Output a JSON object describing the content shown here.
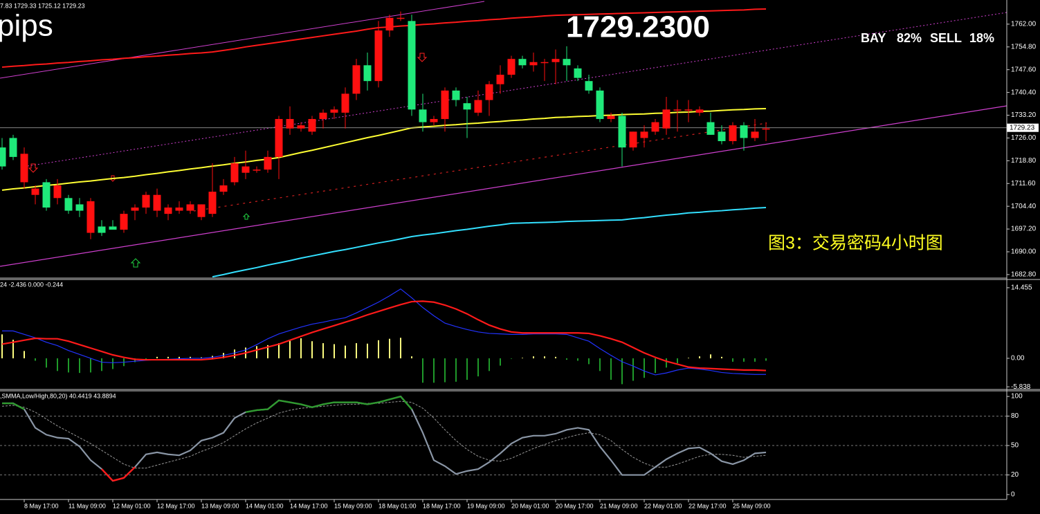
{
  "header": {
    "ohlc_text": "7.83 1729.33 1725.12 1729.23",
    "pips": "pips",
    "price": "1729.2300",
    "bay_label": "BAY",
    "bay_value": "82%",
    "sell_label": "SELL",
    "sell_value": "18%",
    "caption": "图3：交易密码4小时图"
  },
  "chart_data": [
    {
      "type": "candlestick",
      "categories": [
        null,
        null,
        "8 May 17:00",
        null,
        null,
        null,
        "11 May 09:00",
        null,
        null,
        null,
        "12 May 01:00",
        null,
        null,
        null,
        "12 May 17:00",
        null,
        null,
        null,
        "13 May 09:00",
        null,
        null,
        null,
        "14 May 01:00",
        null,
        null,
        null,
        "14 May 17:00",
        null,
        null,
        null,
        "15 May 09:00",
        null,
        null,
        null,
        "18 May 01:00",
        null,
        null,
        null,
        "18 May 17:00",
        null,
        null,
        null,
        "19 May 09:00",
        null,
        null,
        null,
        "20 May 01:00",
        null,
        null,
        null,
        "20 May 17:00",
        null,
        null,
        null,
        "21 May 09:00",
        null,
        null,
        null,
        "22 May 01:00",
        null,
        null,
        null,
        "22 May 17:00",
        null,
        null,
        null,
        "25 May 09:00",
        null,
        null,
        null
      ],
      "open": [
        1723,
        1726,
        1712,
        1708,
        1712,
        1707,
        1707,
        1705,
        1696,
        1698,
        1698,
        1697,
        1703,
        1704,
        1703,
        1702,
        1703,
        1703,
        1701,
        1702,
        1709,
        1712,
        1715,
        1716,
        1716,
        1720,
        1729,
        1729,
        1728,
        1732,
        1734,
        1734,
        1740,
        1749,
        1744,
        1760,
        1764,
        1763,
        1735,
        1731,
        1732,
        1741,
        1737,
        1734,
        1738,
        1743,
        1746,
        1751,
        1749,
        1750,
        1750,
        1751,
        1748,
        1744,
        1741,
        1732,
        1733,
        1723,
        1726,
        1728,
        1729,
        1735,
        1735,
        1734,
        1731,
        1728,
        1725,
        1730,
        1726,
        1729
      ],
      "high": [
        1726,
        1727,
        1723,
        1711,
        1713,
        1713,
        1708,
        1707,
        1707,
        1700,
        1700,
        1703,
        1705,
        1709,
        1710,
        1705,
        1706,
        1706,
        1705,
        1718,
        1713,
        1720,
        1722,
        1717,
        1722,
        1733,
        1736,
        1731,
        1733,
        1735,
        1736,
        1742,
        1751,
        1753,
        1763,
        1765,
        1766,
        1765,
        1740,
        1733,
        1742,
        1742,
        1739,
        1741,
        1744,
        1749,
        1752,
        1752,
        1753,
        1751,
        1754,
        1755,
        1749,
        1746,
        1742,
        1734,
        1734,
        1728,
        1730,
        1732,
        1739,
        1738,
        1738,
        1736,
        1734,
        1730,
        1731,
        1731,
        1732,
        1731
      ],
      "low": [
        1716,
        1719,
        1710,
        1705,
        1703,
        1705,
        1702,
        1701,
        1694,
        1695,
        1697,
        1696,
        1700,
        1702,
        1701,
        1700,
        1702,
        1702,
        1700,
        1701,
        1708,
        1711,
        1713,
        1715,
        1715,
        1713,
        1727,
        1728,
        1727,
        1729,
        1732,
        1729,
        1738,
        1741,
        1742,
        1758,
        1763,
        1733,
        1728,
        1730,
        1728,
        1736,
        1726,
        1733,
        1733,
        1740,
        1745,
        1748,
        1747,
        1744,
        1743,
        1744,
        1744,
        1740,
        1731,
        1731,
        1717,
        1722,
        1723,
        1727,
        1727,
        1728,
        1731,
        1733,
        1727,
        1724,
        1724,
        1722,
        1725,
        1725
      ],
      "close": [
        1717,
        1720,
        1721,
        1710,
        1704,
        1711,
        1703,
        1703,
        1706,
        1696,
        1697,
        1702,
        1704,
        1708,
        1708,
        1704,
        1704,
        1705,
        1705,
        1709,
        1711,
        1718,
        1717,
        1716,
        1720,
        1732,
        1732,
        1730,
        1732,
        1734,
        1735,
        1740,
        1749,
        1744,
        1760,
        1764,
        1764,
        1735,
        1731,
        1732,
        1741,
        1738,
        1735,
        1738,
        1743,
        1746,
        1751,
        1749,
        1750,
        1750,
        1751,
        1749,
        1745,
        1741,
        1732,
        1733,
        1723,
        1728,
        1728,
        1731,
        1735,
        1735,
        1735,
        1735,
        1727,
        1725,
        1730,
        1726,
        1728,
        1729
      ],
      "up_color": "#ff1010",
      "down_color": "#1fe97a",
      "last_price": 1729.23,
      "series": [
        {
          "name": "MA",
          "color": "#ffff33",
          "values": [
            1709.5,
            1709.9,
            1710.2,
            1710.6,
            1711.0,
            1711.3,
            1711.7,
            1712.1,
            1712.4,
            1712.8,
            1713.2,
            1713.5,
            1713.9,
            1714.4,
            1714.8,
            1715.3,
            1715.7,
            1716.2,
            1716.6,
            1717.1,
            1717.5,
            1718.0,
            1718.4,
            1718.9,
            1719.3,
            1719.8,
            1720.6,
            1721.4,
            1722.1,
            1722.9,
            1723.7,
            1724.5,
            1725.3,
            1726.1,
            1726.8,
            1727.6,
            1728.4,
            1729.2,
            1729.5,
            1729.7,
            1730.0,
            1730.2,
            1730.5,
            1730.7,
            1731.0,
            1731.2,
            1731.5,
            1731.7,
            1732.0,
            1732.2,
            1732.5,
            1732.6,
            1732.8,
            1732.9,
            1733.1,
            1733.2,
            1733.4,
            1733.5,
            1733.6,
            1733.8,
            1733.9,
            1734.1,
            1734.2,
            1734.4,
            1734.5,
            1734.7,
            1734.9,
            1735.0,
            1735.2,
            1735.3
          ]
        },
        {
          "name": "Upper",
          "color": "#ff1a1a",
          "values": [
            1748.4,
            1748.7,
            1748.9,
            1749.2,
            1749.4,
            1749.7,
            1749.9,
            1750.2,
            1750.4,
            1750.7,
            1750.9,
            1751.2,
            1751.4,
            1751.7,
            1751.9,
            1752.2,
            1752.4,
            1752.7,
            1752.9,
            1753.2,
            1753.7,
            1754.2,
            1754.8,
            1755.3,
            1755.8,
            1756.3,
            1756.8,
            1757.3,
            1757.8,
            1758.3,
            1758.8,
            1759.3,
            1759.8,
            1760.4,
            1760.9,
            1761.1,
            1761.4,
            1761.6,
            1761.9,
            1762.1,
            1762.4,
            1762.6,
            1762.9,
            1763.1,
            1763.4,
            1763.6,
            1763.9,
            1764.1,
            1764.3,
            1764.6,
            1764.8,
            1764.9,
            1765.0,
            1765.1,
            1765.2,
            1765.3,
            1765.4,
            1765.5,
            1765.6,
            1765.7,
            1765.8,
            1765.9,
            1766.0,
            1766.1,
            1766.2,
            1766.3,
            1766.4,
            1766.5,
            1766.7,
            1766.8
          ]
        },
        {
          "name": "Lower",
          "color": "#33e0ff",
          "values": [
            null,
            null,
            null,
            null,
            null,
            null,
            null,
            null,
            null,
            null,
            null,
            null,
            null,
            null,
            null,
            null,
            null,
            null,
            null,
            1682.1,
            1682.8,
            1683.6,
            1684.3,
            1685.0,
            1685.8,
            1686.5,
            1687.2,
            1688.0,
            1688.7,
            1689.4,
            1690.1,
            1690.7,
            1691.4,
            1692.1,
            1692.8,
            1693.4,
            1694.1,
            1694.8,
            1695.3,
            1695.7,
            1696.2,
            1696.7,
            1697.1,
            1697.6,
            1698.1,
            1698.5,
            1699.0,
            1699.1,
            1699.2,
            1699.3,
            1699.4,
            1699.6,
            1699.7,
            1699.8,
            1699.9,
            1700.0,
            1700.1,
            1700.5,
            1700.8,
            1701.2,
            1701.6,
            1701.9,
            1702.3,
            1702.5,
            1702.8,
            1703.0,
            1703.3,
            1703.5,
            1703.8,
            1704.0
          ]
        }
      ],
      "ylim": [
        1681.9,
        1769.2
      ],
      "yticks": [
        {
          "value": 1762,
          "label": "1762.00"
        },
        {
          "value": 1754.8,
          "label": "1754.80"
        },
        {
          "value": 1747.6,
          "label": "1747.60"
        },
        {
          "value": 1740.4,
          "label": "1740.40"
        },
        {
          "value": 1733.2,
          "label": "1733.20"
        },
        {
          "value": 1726,
          "label": "1726.00"
        },
        {
          "value": 1718.8,
          "label": "1718.80"
        },
        {
          "value": 1711.6,
          "label": "1711.60"
        },
        {
          "value": 1704.4,
          "label": "1704.40"
        },
        {
          "value": 1697.2,
          "label": "1697.20"
        },
        {
          "value": 1690,
          "label": "1690.00"
        },
        {
          "value": 1682.8,
          "label": "1682.80"
        }
      ]
    },
    {
      "type": "macd",
      "title": "24 -2.436 0.000 -0.244",
      "values": [
        4.9,
        3.8,
        1.5,
        -0.5,
        -1.9,
        -2.6,
        -2.9,
        -3.0,
        -2.9,
        -2.6,
        -2.2,
        -1.6,
        -0.8,
        -0.3,
        0.3,
        0.3,
        0.3,
        0.3,
        0.2,
        0.5,
        1.1,
        1.8,
        2.2,
        2.5,
        2.7,
        3.1,
        3.7,
        4.1,
        3.5,
        3.1,
        2.9,
        2.6,
        3.1,
        3.0,
        3.7,
        4.0,
        4.2,
        0.4,
        -5.0,
        -5.0,
        -4.9,
        -4.8,
        -4.4,
        -3.7,
        -2.6,
        -1.5,
        -0.1,
        0.1,
        0.4,
        0.4,
        0.3,
        -0.3,
        -0.5,
        -1.2,
        -2.6,
        -4.4,
        -5.3,
        -4.6,
        -4.0,
        -3.0,
        -1.9,
        -1.0,
        0.1,
        0.4,
        0.8,
        0.3,
        -0.7,
        -0.7,
        -0.7,
        -0.5
      ],
      "pos_color": "#ffff80",
      "neg_color": "#1f9a2a",
      "series": [
        {
          "name": "MACD",
          "color": "#2233ff",
          "values": [
            5.6,
            5.6,
            4.9,
            4.2,
            3.3,
            2.6,
            1.6,
            0.8,
            0.0,
            -0.8,
            -0.9,
            -0.8,
            -0.6,
            -0.4,
            -0.3,
            -0.2,
            -0.1,
            0.0,
            0.0,
            0.2,
            0.6,
            1.1,
            1.7,
            2.8,
            4.0,
            5.0,
            5.7,
            6.4,
            7.0,
            7.4,
            7.9,
            8.3,
            9.3,
            10.4,
            11.5,
            12.8,
            14.2,
            12.4,
            10.4,
            8.7,
            7.2,
            6.5,
            5.9,
            5.4,
            5.1,
            5.0,
            4.9,
            4.9,
            5.0,
            5.0,
            5.0,
            4.9,
            4.2,
            3.5,
            2.0,
            0.6,
            -0.7,
            -1.6,
            -2.6,
            -3.4,
            -3.0,
            -2.4,
            -2.0,
            -2.2,
            -2.5,
            -2.9,
            -3.1,
            -3.2,
            -3.3,
            -3.3
          ]
        },
        {
          "name": "Signal",
          "color": "#ff1a1a",
          "values": [
            2.9,
            3.3,
            3.7,
            4.1,
            4.0,
            4.0,
            3.5,
            2.8,
            2.1,
            1.4,
            0.7,
            0.2,
            -0.2,
            -0.3,
            -0.3,
            -0.3,
            -0.3,
            -0.3,
            -0.3,
            -0.1,
            0.2,
            0.6,
            1.1,
            1.7,
            2.3,
            2.9,
            3.7,
            4.5,
            5.3,
            6.0,
            6.7,
            7.4,
            8.1,
            8.9,
            9.6,
            10.3,
            11.0,
            11.6,
            11.7,
            11.5,
            10.9,
            10.1,
            9.1,
            7.9,
            6.8,
            6.0,
            5.4,
            5.2,
            5.2,
            5.2,
            5.2,
            5.2,
            5.2,
            5.1,
            4.6,
            4.0,
            3.3,
            2.2,
            1.1,
            0.2,
            -0.6,
            -1.2,
            -1.8,
            -2.0,
            -2.1,
            -2.2,
            -2.3,
            -2.4,
            -2.4,
            -2.5
          ]
        }
      ],
      "ylim": [
        -6.1,
        16.0
      ],
      "yticks": [
        14.455,
        {
          "value": 0,
          "label": "0.00"
        },
        -5.838
      ]
    },
    {
      "type": "stochastic",
      "title": ",SMMA,Low/High,80,20) 40.4419 43.8894",
      "series": [
        {
          "name": "Main",
          "color": "#8a96a6",
          "values": [
            93,
            93,
            87,
            68,
            61,
            58,
            57,
            49,
            35,
            26,
            14,
            17,
            28,
            41,
            43,
            41,
            40,
            45,
            55,
            58,
            63,
            78,
            84,
            86,
            87,
            96,
            94,
            92,
            89,
            92,
            94,
            94,
            94,
            92,
            94,
            97,
            100,
            87,
            63,
            35,
            29,
            21,
            24,
            26,
            33,
            42,
            52,
            58,
            60,
            60,
            62,
            66,
            68,
            66,
            49,
            35,
            20,
            20,
            20,
            28,
            36,
            42,
            47,
            48,
            42,
            34,
            31,
            35,
            42,
            43
          ]
        },
        {
          "name": "Signal",
          "color": "#9a9a9a",
          "values": [
            90,
            91,
            89,
            84,
            77,
            70,
            64,
            58,
            52,
            45,
            38,
            31,
            27,
            27,
            30,
            33,
            36,
            39,
            44,
            48,
            53,
            60,
            67,
            73,
            78,
            83,
            86,
            88,
            89,
            90,
            91,
            92,
            92,
            93,
            93,
            94,
            95,
            94,
            88,
            78,
            66,
            55,
            46,
            39,
            35,
            34,
            37,
            42,
            47,
            51,
            55,
            58,
            61,
            63,
            61,
            55,
            46,
            38,
            32,
            28,
            28,
            31,
            35,
            39,
            41,
            41,
            40,
            38,
            39,
            40
          ]
        }
      ],
      "levels": [
        20,
        50,
        80
      ],
      "upper_color": "#2f9a2f",
      "lower_color": "#ff1a1a",
      "ylim": [
        -5,
        105
      ],
      "yticks": [
        100,
        80,
        50,
        20,
        0
      ]
    }
  ]
}
